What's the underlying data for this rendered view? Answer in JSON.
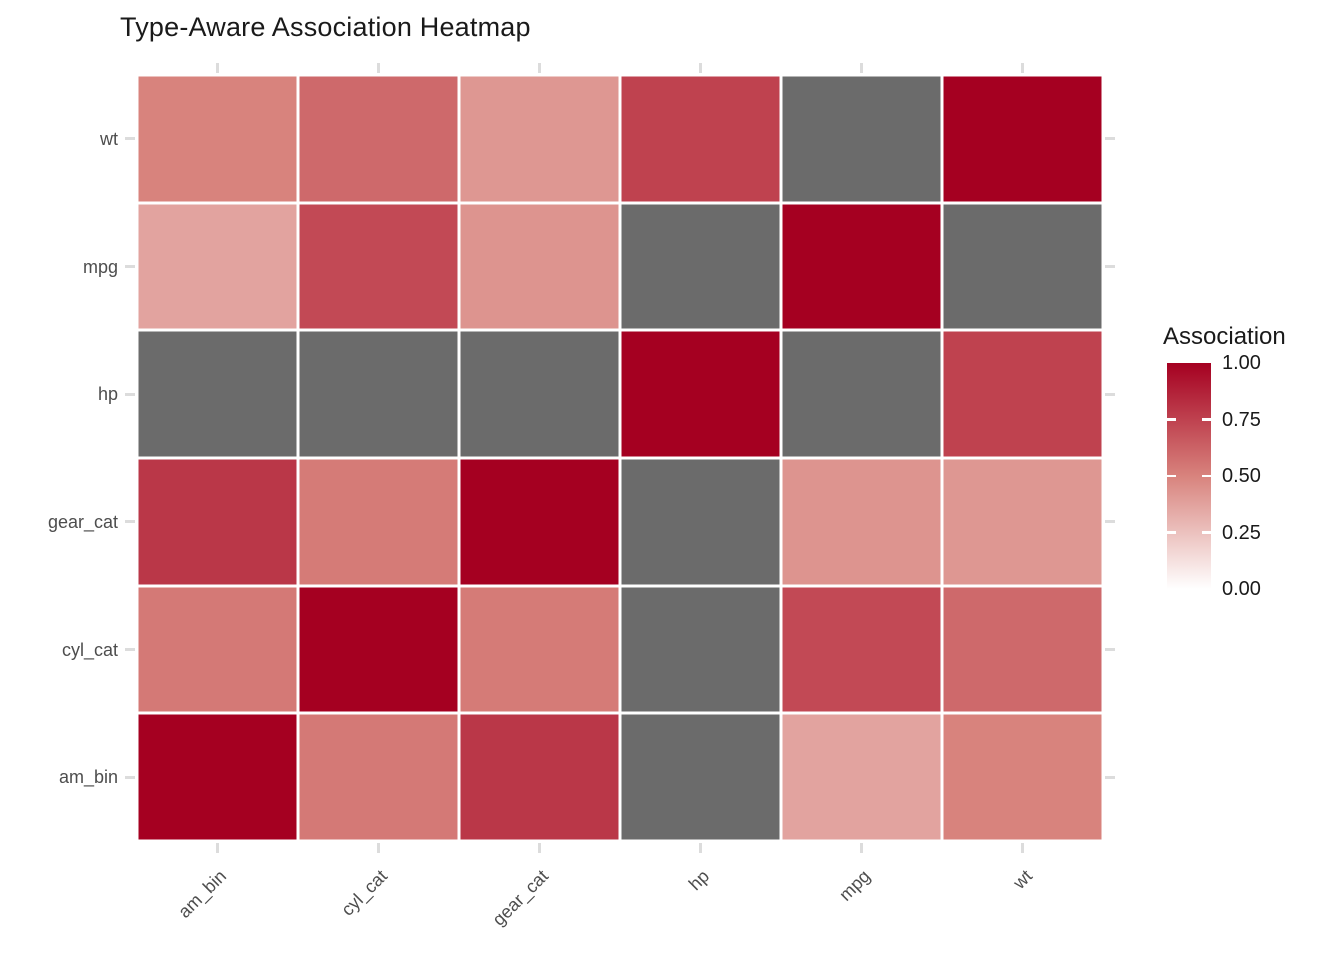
{
  "page": {
    "background": "#ffffff"
  },
  "chart_data": {
    "type": "heatmap",
    "title": "Type-Aware Association Heatmap",
    "x_categories": [
      "am_bin",
      "cyl_cat",
      "gear_cat",
      "hp",
      "mpg",
      "wt"
    ],
    "y_categories": [
      "wt",
      "mpg",
      "hp",
      "gear_cat",
      "cyl_cat",
      "am_bin"
    ],
    "values": [
      [
        0.5,
        0.6,
        0.42,
        0.75,
        null,
        1.0
      ],
      [
        0.37,
        0.72,
        0.43,
        null,
        1.0,
        null
      ],
      [
        null,
        null,
        null,
        1.0,
        null,
        0.75
      ],
      [
        0.79,
        0.53,
        1.0,
        null,
        0.43,
        0.42
      ],
      [
        0.54,
        1.0,
        0.53,
        null,
        0.72,
        0.6
      ],
      [
        1.0,
        0.54,
        0.79,
        null,
        0.37,
        0.5
      ]
    ],
    "value_domain": [
      0,
      1
    ],
    "na_value_color": "#6b6b6b",
    "colors": {
      "low": "#ffffff",
      "mid": "#d8837d",
      "high": "#a50021",
      "na": "#6b6b6b",
      "tile_border": "#ffffff",
      "axis_tick": "#dcdcdc",
      "axis_text": "#4d4d4d",
      "title_text": "#1a1a1a"
    },
    "legend": {
      "title": "Association",
      "tick_labels": [
        "1.00",
        "0.75",
        "0.50",
        "0.25",
        "0.00"
      ],
      "orientation": "vertical",
      "position": "right"
    },
    "grid": false,
    "x_label_angle": 45
  }
}
